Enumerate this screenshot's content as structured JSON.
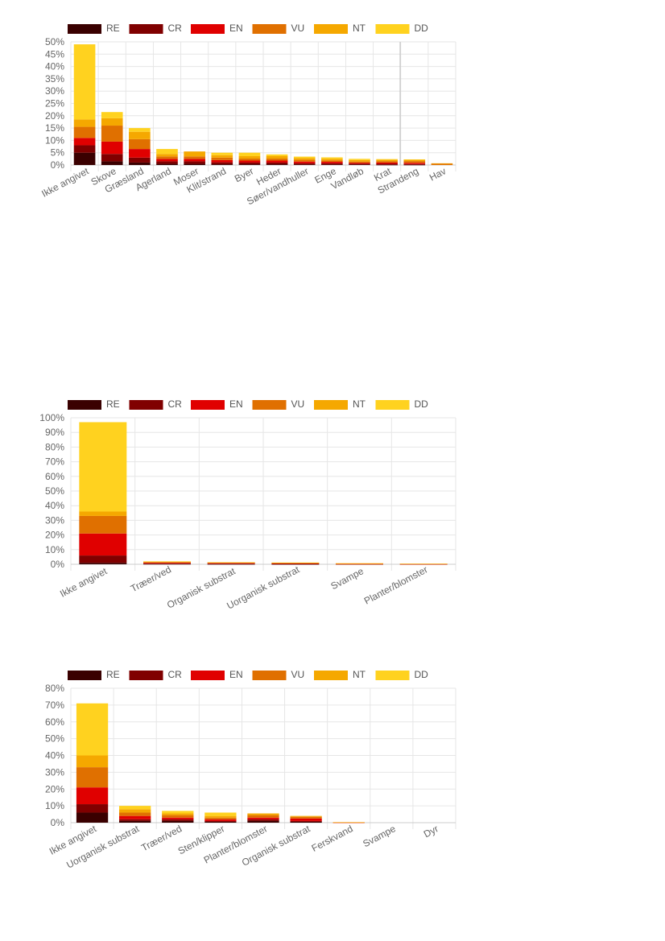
{
  "legend": [
    {
      "code": "RE",
      "color": "#3a0000"
    },
    {
      "code": "CR",
      "color": "#800000"
    },
    {
      "code": "EN",
      "color": "#e00000"
    },
    {
      "code": "VU",
      "color": "#e07000"
    },
    {
      "code": "NT",
      "color": "#f5a800"
    },
    {
      "code": "DD",
      "color": "#ffd21f"
    }
  ],
  "chart_data": [
    {
      "type": "bar",
      "stacked": true,
      "grid": true,
      "legend_position": "top",
      "ylim": [
        0,
        50
      ],
      "yticks": [
        "0%",
        "5%",
        "10%",
        "15%",
        "20%",
        "25%",
        "30%",
        "35%",
        "40%",
        "45%",
        "50%"
      ],
      "categories": [
        "Ikke angivet",
        "Skove",
        "Græsland",
        "Agerland",
        "Moser",
        "Klit/strand",
        "Byer",
        "Heder",
        "Søer/vandhuller",
        "Enge",
        "Vandløb",
        "Krat",
        "Strandeng",
        "Hav"
      ],
      "series": [
        {
          "name": "RE",
          "values": [
            5,
            1.5,
            1,
            0.5,
            0.5,
            0.3,
            0.3,
            0.3,
            0.2,
            0.2,
            0.2,
            0.1,
            0.1,
            0
          ]
        },
        {
          "name": "CR",
          "values": [
            3,
            3,
            2,
            1,
            1,
            0.8,
            0.7,
            0.7,
            0.5,
            0.5,
            0.3,
            0.4,
            0.3,
            0
          ]
        },
        {
          "name": "EN",
          "values": [
            3,
            5,
            3.5,
            1,
            1,
            0.9,
            0.8,
            0.8,
            0.7,
            0.6,
            0.4,
            0.5,
            0.5,
            0
          ]
        },
        {
          "name": "VU",
          "values": [
            4.5,
            6.5,
            4,
            1,
            1,
            1,
            0.8,
            0.8,
            0.7,
            0.6,
            0.5,
            0.6,
            0.7,
            0.5
          ]
        },
        {
          "name": "NT",
          "values": [
            3,
            3,
            3,
            1,
            2,
            1,
            1,
            1,
            0.7,
            0.6,
            0.6,
            0.5,
            0.5,
            0.2
          ]
        },
        {
          "name": "DD",
          "values": [
            30.5,
            2.5,
            1.5,
            2,
            0,
            1,
            1.4,
            0.7,
            0.6,
            0.6,
            0.5,
            0.3,
            0.2,
            0
          ]
        }
      ]
    },
    {
      "type": "bar",
      "stacked": true,
      "grid": true,
      "legend_position": "top",
      "ylim": [
        0,
        100
      ],
      "yticks": [
        "0%",
        "10%",
        "20%",
        "30%",
        "40%",
        "50%",
        "60%",
        "70%",
        "80%",
        "90%",
        "100%"
      ],
      "categories": [
        "Ikke angivet",
        "Træer/ved",
        "Organisk substrat",
        "Uorganisk substrat",
        "Svampe",
        "Planter/blomster"
      ],
      "series": [
        {
          "name": "RE",
          "values": [
            1,
            0.2,
            0.1,
            0.1,
            0,
            0
          ]
        },
        {
          "name": "CR",
          "values": [
            5,
            0.3,
            0.3,
            0.2,
            0.1,
            0.1
          ]
        },
        {
          "name": "EN",
          "values": [
            15,
            0.5,
            0.4,
            0.3,
            0.2,
            0.1
          ]
        },
        {
          "name": "VU",
          "values": [
            12,
            0.5,
            0.3,
            0.3,
            0.2,
            0.1
          ]
        },
        {
          "name": "NT",
          "values": [
            3,
            0.3,
            0.2,
            0.2,
            0.1,
            0.1
          ]
        },
        {
          "name": "DD",
          "values": [
            61,
            0.2,
            0.1,
            0.1,
            0.1,
            0
          ]
        }
      ]
    },
    {
      "type": "bar",
      "stacked": true,
      "grid": true,
      "legend_position": "top",
      "ylim": [
        0,
        80
      ],
      "yticks": [
        "0%",
        "10%",
        "20%",
        "30%",
        "40%",
        "50%",
        "60%",
        "70%",
        "80%"
      ],
      "categories": [
        "Ikke angivet",
        "Uorganisk substrat",
        "Træer/ved",
        "Sten/klipper",
        "Planter/blomster",
        "Organisk substrat",
        "Ferskvand",
        "Svampe",
        "Dyr"
      ],
      "series": [
        {
          "name": "RE",
          "values": [
            6,
            1,
            1,
            0.5,
            1,
            0.5,
            0,
            0,
            0
          ]
        },
        {
          "name": "CR",
          "values": [
            5,
            1,
            1,
            0.5,
            1,
            0.5,
            0,
            0,
            0
          ]
        },
        {
          "name": "EN",
          "values": [
            10,
            2,
            1,
            1,
            1,
            1.5,
            0.1,
            0,
            0
          ]
        },
        {
          "name": "VU",
          "values": [
            12,
            2,
            1.5,
            1,
            1.5,
            1,
            0.1,
            0,
            0
          ]
        },
        {
          "name": "NT",
          "values": [
            7,
            2,
            1,
            1,
            1,
            0.5,
            0.1,
            0,
            0
          ]
        },
        {
          "name": "DD",
          "values": [
            31,
            2,
            1.5,
            2,
            0,
            0,
            0,
            0,
            0
          ]
        }
      ]
    }
  ]
}
